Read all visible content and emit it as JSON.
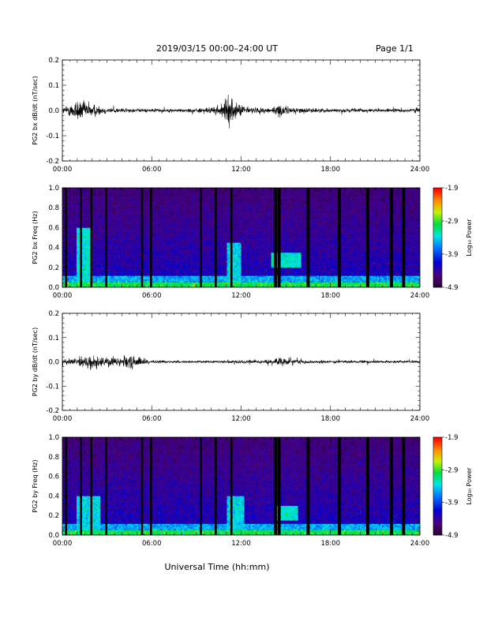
{
  "header": {
    "date_range": "2019/03/15  00:00–24:00 UT",
    "page": "Page 1/1"
  },
  "x_axis": {
    "label": "Universal Time (hh:mm)",
    "ticks": [
      "00:00",
      "06:00",
      "12:00",
      "18:00",
      "24:00"
    ],
    "range_hours": [
      0,
      24
    ]
  },
  "chart_data": [
    {
      "type": "line",
      "ylabel": "PG2 bx dB/dt (nT/sec)",
      "ylim": [
        -0.2,
        0.2
      ],
      "yticks": [
        "-0.2",
        "-0.1",
        "0.0",
        "0.1",
        "0.2"
      ],
      "activity_envelope": {
        "hours": [
          0.0,
          0.5,
          1.0,
          1.5,
          2.0,
          2.5,
          3.0,
          4.0,
          5.0,
          6.0,
          7.5,
          9.0,
          10.0,
          10.8,
          11.2,
          11.6,
          12.0,
          12.5,
          13.0,
          14.0,
          14.6,
          15.0,
          15.5,
          16.5,
          18.0,
          20.0,
          22.0,
          23.5,
          24.0
        ],
        "amplitude": [
          0.02,
          0.04,
          0.08,
          0.06,
          0.05,
          0.03,
          0.02,
          0.015,
          0.012,
          0.012,
          0.01,
          0.015,
          0.02,
          0.05,
          0.1,
          0.05,
          0.04,
          0.025,
          0.02,
          0.02,
          0.04,
          0.03,
          0.02,
          0.015,
          0.012,
          0.012,
          0.01,
          0.015,
          0.02
        ]
      }
    },
    {
      "type": "heatmap",
      "ylabel": "PG2 bx Freq (Hz)",
      "ylim": [
        0.0,
        1.0
      ],
      "yticks": [
        "0.0",
        "0.2",
        "0.4",
        "0.6",
        "0.8",
        "1.0"
      ],
      "colorbar": {
        "label": "Log₁₀ Power",
        "range": [
          -4.9,
          -1.9
        ],
        "ticks": [
          "-1.9",
          "-2.9",
          "-3.9",
          "-4.9"
        ]
      },
      "gap_hours": [
        0.25,
        1.25,
        1.95,
        2.95,
        5.35,
        5.95,
        9.3,
        10.3,
        11.35,
        14.3,
        14.55,
        16.5,
        18.6,
        20.5,
        22.1,
        22.9
      ],
      "enhanced_bands": [
        {
          "hours": [
            1.0,
            2.0
          ],
          "freq_hz": [
            0.0,
            0.6
          ],
          "level": -3.3
        },
        {
          "hours": [
            11.0,
            12.0
          ],
          "freq_hz": [
            0.0,
            0.45
          ],
          "level": -3.4
        },
        {
          "hours": [
            14.0,
            16.0
          ],
          "freq_hz": [
            0.2,
            0.35
          ],
          "level": -3.3
        }
      ]
    },
    {
      "type": "line",
      "ylabel": "PG2 by dB/dt (nT/sec)",
      "ylim": [
        -0.2,
        0.2
      ],
      "yticks": [
        "-0.2",
        "-0.1",
        "0.0",
        "0.1",
        "0.2"
      ],
      "activity_envelope": {
        "hours": [
          0.0,
          0.5,
          1.0,
          1.5,
          2.0,
          2.5,
          3.0,
          3.5,
          4.0,
          4.5,
          5.0,
          5.5,
          6.0,
          7.5,
          9.0,
          10.5,
          12.0,
          13.0,
          14.0,
          14.8,
          15.5,
          16.5,
          18.0,
          20.0,
          22.0,
          23.5,
          24.0
        ],
        "amplitude": [
          0.015,
          0.025,
          0.03,
          0.045,
          0.04,
          0.035,
          0.035,
          0.03,
          0.04,
          0.05,
          0.03,
          0.025,
          0.01,
          0.008,
          0.008,
          0.01,
          0.012,
          0.012,
          0.015,
          0.03,
          0.02,
          0.012,
          0.01,
          0.009,
          0.008,
          0.009,
          0.012
        ]
      }
    },
    {
      "type": "heatmap",
      "ylabel": "PG2 by Freq (Hz)",
      "ylim": [
        0.0,
        1.0
      ],
      "yticks": [
        "0.0",
        "0.2",
        "0.4",
        "0.6",
        "0.8",
        "1.0"
      ],
      "colorbar": {
        "label": "Log₁₀ Power",
        "range": [
          -4.9,
          -1.9
        ],
        "ticks": [
          "-1.9",
          "-2.9",
          "-3.9",
          "-4.9"
        ]
      },
      "gap_hours": [
        0.25,
        1.25,
        1.95,
        2.95,
        5.35,
        5.95,
        9.3,
        10.3,
        11.35,
        14.3,
        14.55,
        16.5,
        18.6,
        20.5,
        22.1,
        22.9
      ],
      "enhanced_bands": [
        {
          "hours": [
            1.0,
            2.5
          ],
          "freq_hz": [
            0.0,
            0.4
          ],
          "level": -3.4
        },
        {
          "hours": [
            11.0,
            12.2
          ],
          "freq_hz": [
            0.0,
            0.4
          ],
          "level": -3.4
        },
        {
          "hours": [
            14.2,
            15.8
          ],
          "freq_hz": [
            0.15,
            0.3
          ],
          "level": -3.3
        }
      ]
    }
  ]
}
